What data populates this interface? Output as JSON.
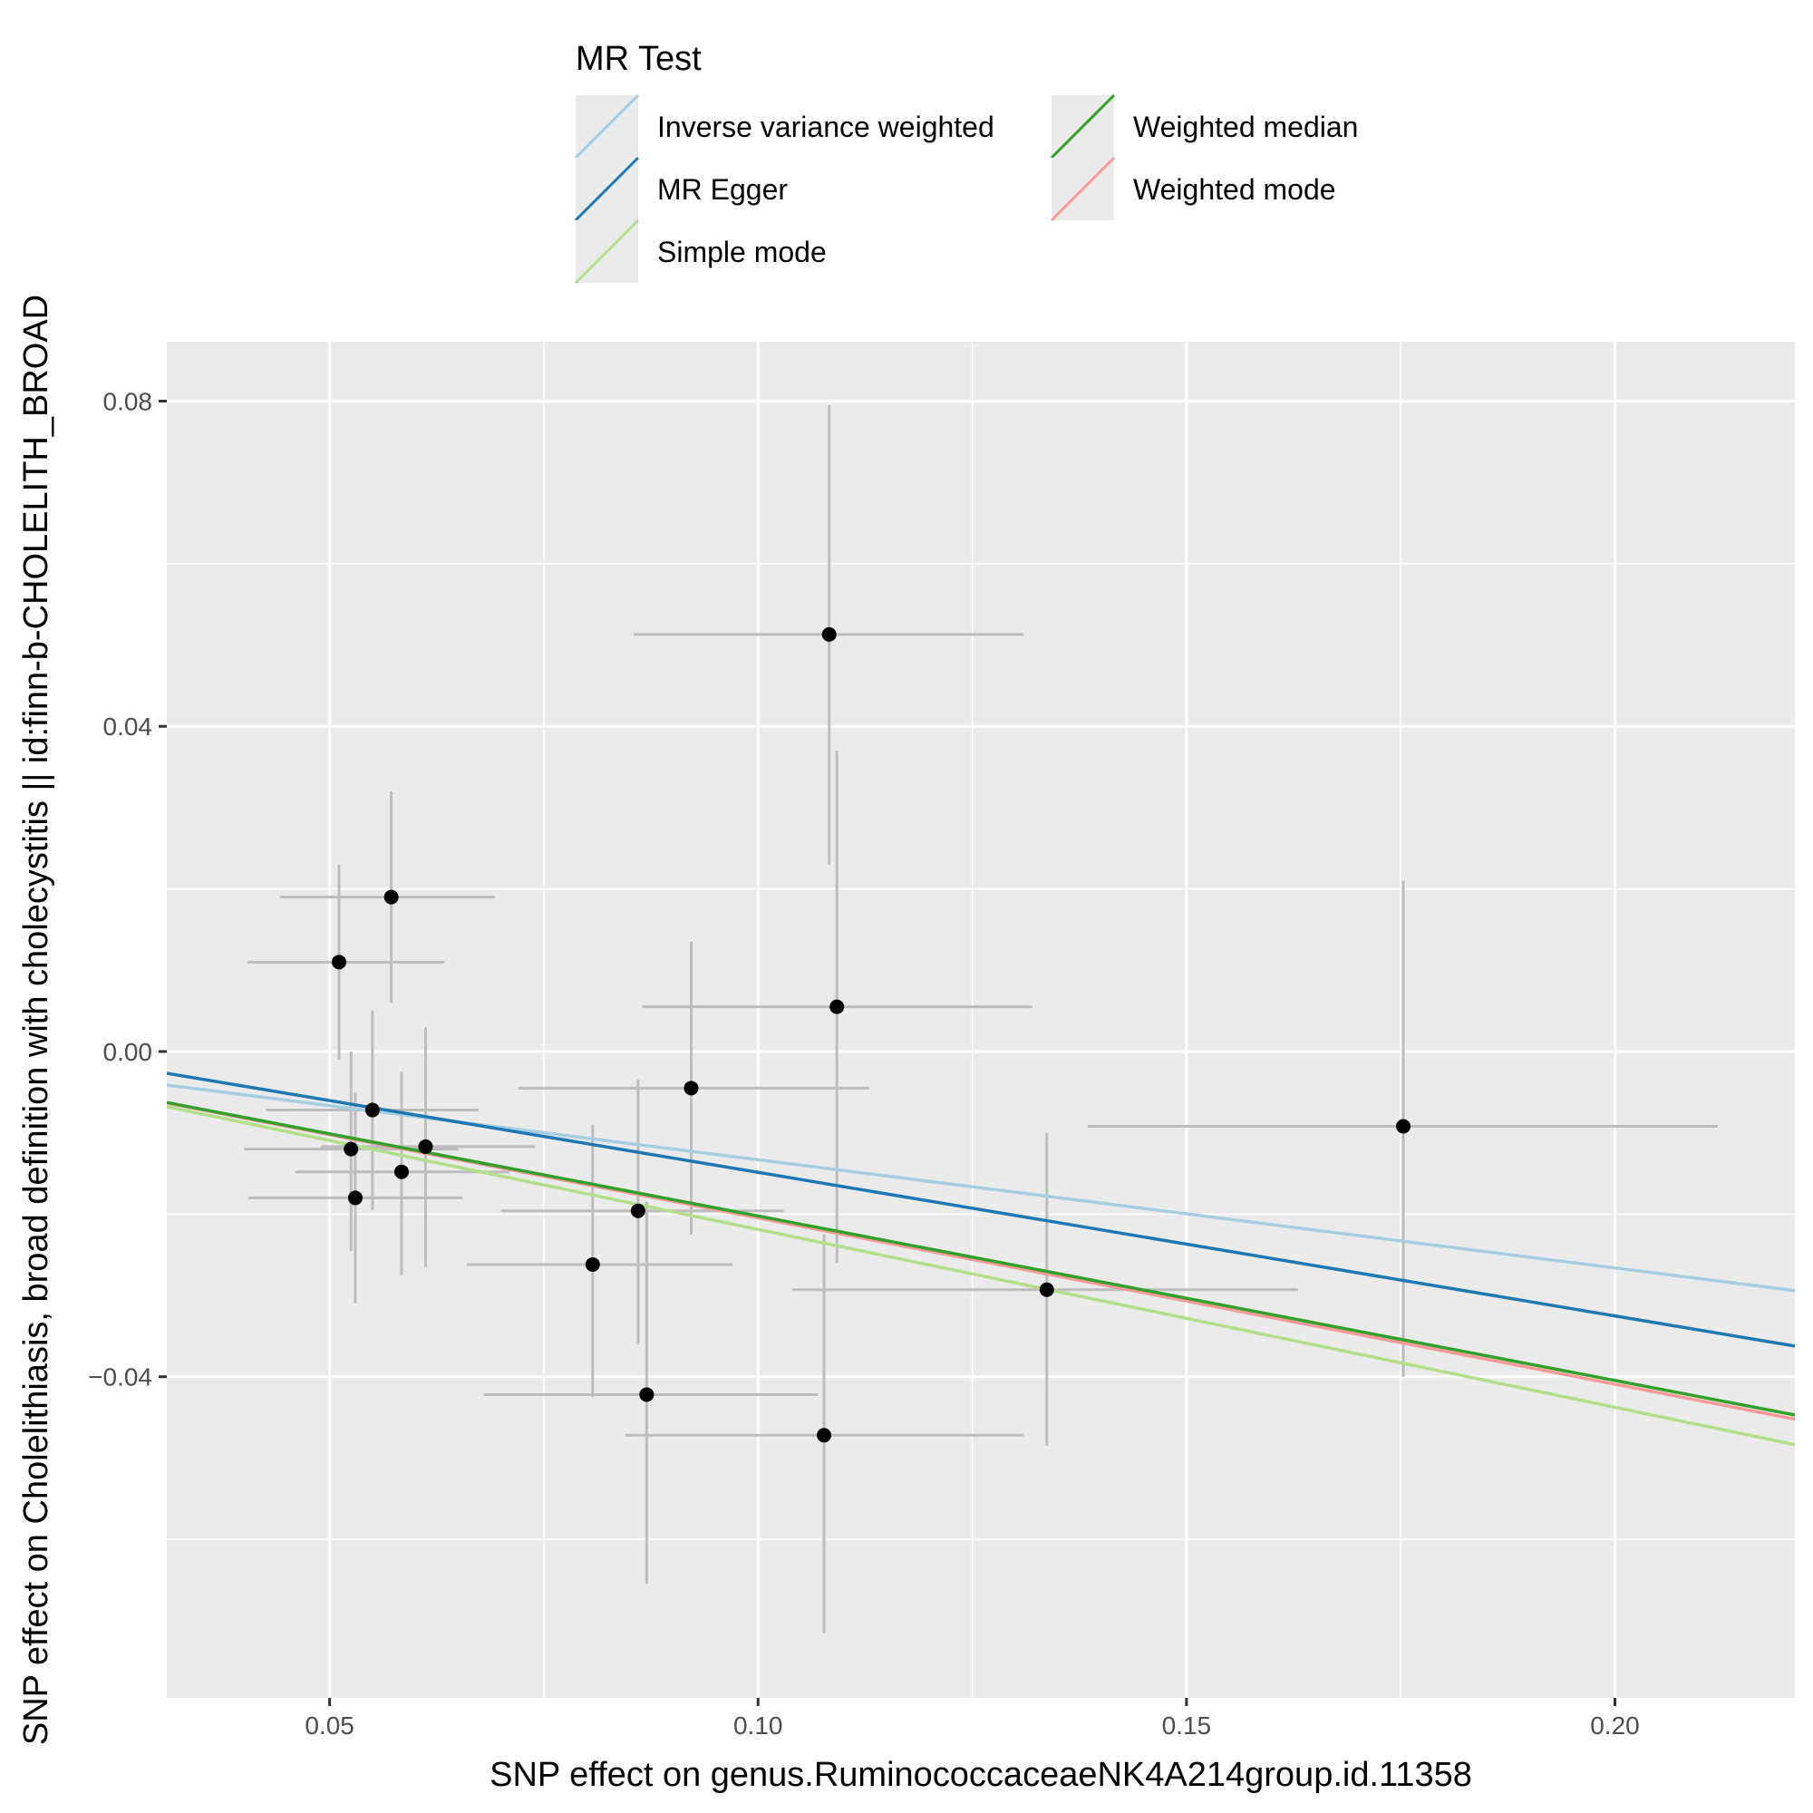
{
  "chart_data": {
    "type": "scatter",
    "xlabel": "SNP effect on genus.RuminococcaceaeNK4A214group.id.11358",
    "ylabel": "SNP effect on Cholelithiasis, broad definition with cholecystitis || id:finn-b-CHOLELITH_BROAD",
    "xlim": [
      0.031,
      0.221
    ],
    "ylim": [
      -0.0795,
      0.0873
    ],
    "x_ticks": [
      0.05,
      0.1,
      0.15,
      0.2
    ],
    "x_tick_labels": [
      "0.05",
      "0.10",
      "0.15",
      "0.20"
    ],
    "y_ticks": [
      0.08,
      0.04,
      0.0,
      -0.04
    ],
    "y_tick_labels": [
      "0.08",
      "0.04",
      "0.00",
      "−0.04"
    ],
    "grid": true,
    "legend": {
      "title": "MR Test",
      "position": "top",
      "entries": [
        {
          "label": "Inverse variance weighted",
          "color": "#A6CEE3"
        },
        {
          "label": "MR Egger",
          "color": "#1F78B4"
        },
        {
          "label": "Simple mode",
          "color": "#B2DF8A"
        },
        {
          "label": "Weighted median",
          "color": "#33A02C"
        },
        {
          "label": "Weighted mode",
          "color": "#FB9A99"
        }
      ]
    },
    "points": [
      {
        "x": 0.0511,
        "y": 0.011,
        "xlo": 0.0404,
        "xhi": 0.0634,
        "ylo": -0.001,
        "yhi": 0.023
      },
      {
        "x": 0.0572,
        "y": 0.019,
        "xlo": 0.0442,
        "xhi": 0.0693,
        "ylo": 0.006,
        "yhi": 0.032
      },
      {
        "x": 0.055,
        "y": -0.0072,
        "xlo": 0.0426,
        "xhi": 0.0674,
        "ylo": -0.0195,
        "yhi": 0.005
      },
      {
        "x": 0.0525,
        "y": -0.012,
        "xlo": 0.04,
        "xhi": 0.065,
        "ylo": -0.0245,
        "yhi": 0.0
      },
      {
        "x": 0.053,
        "y": -0.018,
        "xlo": 0.0405,
        "xhi": 0.0655,
        "ylo": -0.031,
        "yhi": -0.005
      },
      {
        "x": 0.0584,
        "y": -0.0148,
        "xlo": 0.046,
        "xhi": 0.071,
        "ylo": -0.0275,
        "yhi": -0.0025
      },
      {
        "x": 0.0612,
        "y": -0.0117,
        "xlo": 0.049,
        "xhi": 0.074,
        "ylo": -0.0265,
        "yhi": 0.003
      },
      {
        "x": 0.0807,
        "y": -0.0262,
        "xlo": 0.066,
        "xhi": 0.097,
        "ylo": -0.0425,
        "yhi": -0.009
      },
      {
        "x": 0.086,
        "y": -0.0196,
        "xlo": 0.07,
        "xhi": 0.103,
        "ylo": -0.036,
        "yhi": -0.0035
      },
      {
        "x": 0.087,
        "y": -0.0422,
        "xlo": 0.068,
        "xhi": 0.107,
        "ylo": -0.0655,
        "yhi": -0.0185
      },
      {
        "x": 0.0922,
        "y": -0.0045,
        "xlo": 0.072,
        "xhi": 0.113,
        "ylo": -0.0225,
        "yhi": 0.0135
      },
      {
        "x": 0.1083,
        "y": 0.0513,
        "xlo": 0.0855,
        "xhi": 0.131,
        "ylo": 0.023,
        "yhi": 0.0795
      },
      {
        "x": 0.1092,
        "y": 0.0055,
        "xlo": 0.0865,
        "xhi": 0.132,
        "ylo": -0.026,
        "yhi": 0.037
      },
      {
        "x": 0.1077,
        "y": -0.0472,
        "xlo": 0.0845,
        "xhi": 0.131,
        "ylo": -0.0715,
        "yhi": -0.0225
      },
      {
        "x": 0.1337,
        "y": -0.0293,
        "xlo": 0.104,
        "xhi": 0.163,
        "ylo": -0.0485,
        "yhi": -0.01
      },
      {
        "x": 0.1753,
        "y": -0.0092,
        "xlo": 0.1385,
        "xhi": 0.212,
        "ylo": -0.04,
        "yhi": 0.021
      }
    ],
    "lines": [
      {
        "name": "Inverse variance weighted",
        "color": "#A6CEE3",
        "intercept": 0.0,
        "slope": -0.1331
      },
      {
        "name": "MR Egger",
        "color": "#1F78B4",
        "intercept": 0.0028,
        "slope": -0.1766
      },
      {
        "name": "Weighted median",
        "color": "#33A02C",
        "intercept": 0.0,
        "slope": -0.2023
      },
      {
        "name": "Weighted mode",
        "color": "#FB9A99",
        "intercept": 0.0,
        "slope": -0.2046
      },
      {
        "name": "Simple mode",
        "color": "#B2DF8A",
        "intercept": 0.0,
        "slope": -0.2188
      }
    ]
  }
}
